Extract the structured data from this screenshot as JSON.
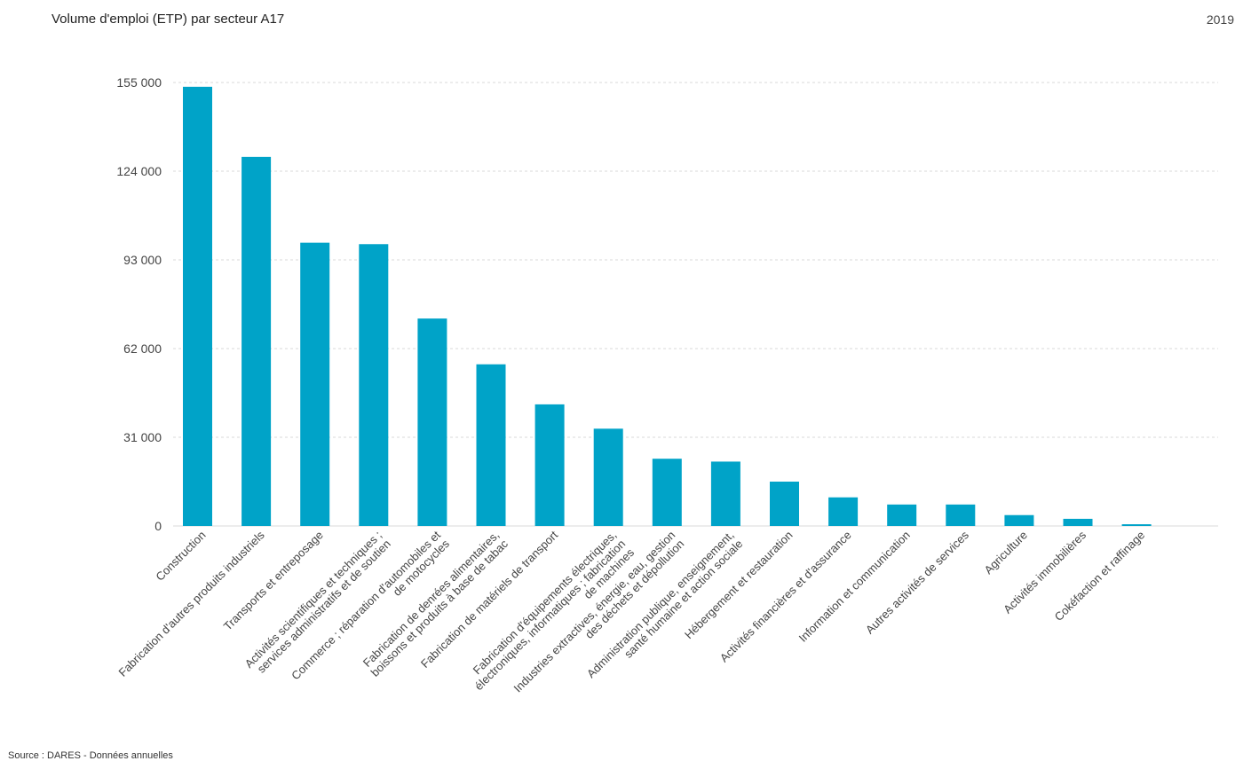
{
  "header": {
    "title": "Volume d'emploi (ETP) par secteur A17",
    "year": "2019"
  },
  "footer": {
    "source": "Source : DARES - Données annuelles"
  },
  "colors": {
    "bar": "#00a3c8",
    "grid": "#d9d9d9"
  },
  "chart_data": {
    "type": "bar",
    "title": "Volume d'emploi (ETP) par secteur A17",
    "xlabel": "",
    "ylabel": "",
    "ylim": [
      0,
      155000
    ],
    "yticks": [
      0,
      31000,
      62000,
      93000,
      124000,
      155000
    ],
    "ytick_labels": [
      "0",
      "31 000",
      "62 000",
      "93 000",
      "124 000",
      "155 000"
    ],
    "grid": true,
    "categories": [
      "Construction",
      "Fabrication d'autres produits industriels",
      "Transports et entreposage",
      "Activités scientifiques et techniques ; services administratifs et de soutien",
      "Commerce ; réparation d'automobiles et de motocycles",
      "Fabrication de denrées alimentaires, boissons et produits à base de tabac",
      "Fabrication de matériels de transport",
      "Fabrication d'équipements électriques, électroniques, informatiques ; fabrication de machines",
      "Industries extractives, énergie, eau, gestion des déchets et dépollution",
      "Administration publique, enseignement, santé humaine et action sociale",
      "Hébergement et restauration",
      "Activités financières et d'assurance",
      "Information et communication",
      "Autres activités de services",
      "Agriculture",
      "Activités immobilières",
      "Cokéfaction et raffinage"
    ],
    "category_lines": [
      [
        "Construction"
      ],
      [
        "Fabrication d'autres produits industriels"
      ],
      [
        "Transports et entreposage"
      ],
      [
        "Activités scientifiques et techniques ;",
        "services administratifs et de soutien"
      ],
      [
        "Commerce ; réparation d'automobiles et",
        "de motocycles"
      ],
      [
        "Fabrication de denrées alimentaires,",
        "boissons et produits à base de tabac"
      ],
      [
        "Fabrication de matériels de transport"
      ],
      [
        "Fabrication d'équipements électriques,",
        "électroniques, informatiques ; fabrication",
        "de machines"
      ],
      [
        "Industries extractives, énergie, eau, gestion",
        "des déchets et dépollution"
      ],
      [
        "Administration publique, enseignement,",
        "santé humaine et action sociale"
      ],
      [
        "Hébergement et restauration"
      ],
      [
        "Activités financières et d'assurance"
      ],
      [
        "Information et communication"
      ],
      [
        "Autres activités de services"
      ],
      [
        "Agriculture"
      ],
      [
        "Activités immobilières"
      ],
      [
        "Cokéfaction et raffinage"
      ]
    ],
    "values": [
      153500,
      129000,
      99000,
      98500,
      72500,
      56500,
      42500,
      34000,
      23500,
      22500,
      15500,
      10000,
      7500,
      7500,
      3800,
      2500,
      600
    ]
  }
}
